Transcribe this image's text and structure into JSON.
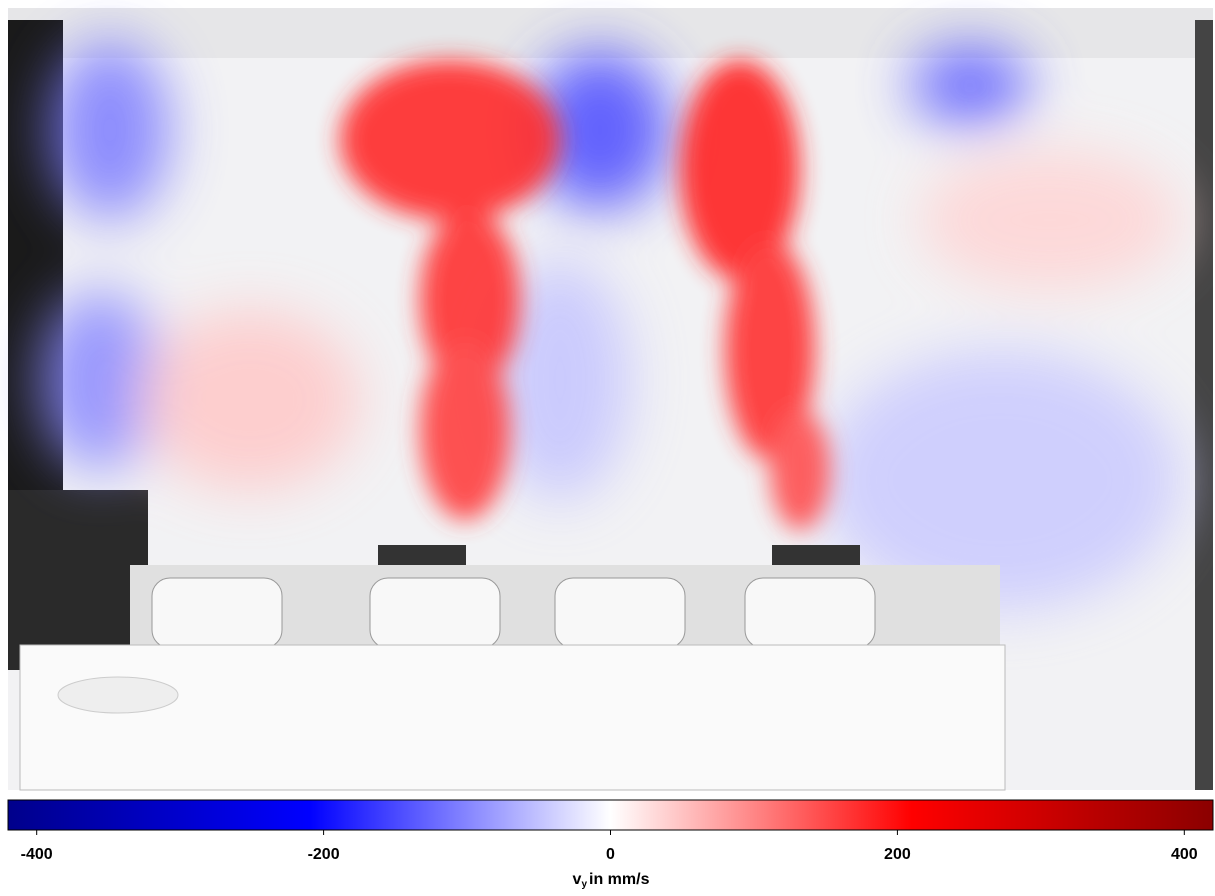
{
  "colorbar": {
    "lim": [
      -420,
      420
    ],
    "ticks": [
      -400,
      -200,
      0,
      200,
      400
    ],
    "colors": [
      "#00008b",
      "#0000ff",
      "#ffffff",
      "#ff0000",
      "#8b0000"
    ],
    "label": {
      "symbol": "v",
      "subscript": "y",
      "unit_text": "in mm/s"
    }
  }
}
